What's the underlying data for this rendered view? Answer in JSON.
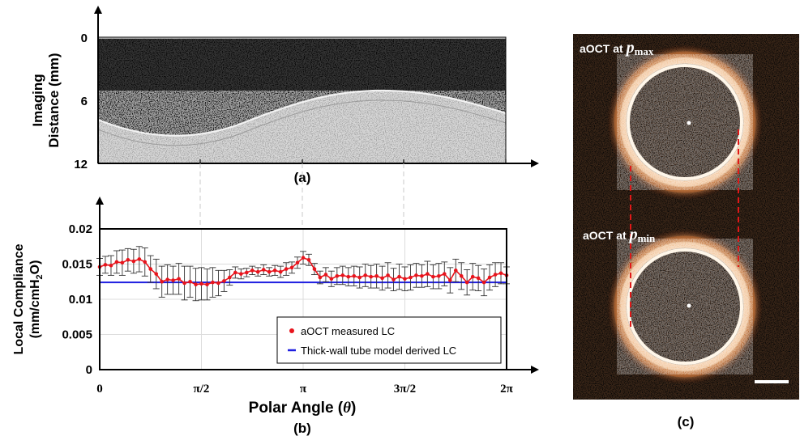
{
  "panel_a": {
    "caption": "(a)",
    "ylabel_line1": "Imaging",
    "ylabel_line2": "Distance (mm)",
    "yticks": [
      "0",
      "6",
      "12"
    ]
  },
  "panel_b": {
    "caption": "(b)",
    "ylabel_line1": "Local Compliance",
    "ylabel_line2_pre": "(mm/cmH",
    "ylabel_line2_sub": "2",
    "ylabel_line2_post": "O)",
    "xlabel_pre": "Polar Angle (",
    "xlabel_theta": "θ",
    "xlabel_post": ")",
    "legend": {
      "measured": "aOCT measured LC",
      "model": "Thick-wall tube model derived LC"
    }
  },
  "panel_c": {
    "caption": "(c)",
    "label_top_pre": "aOCT at ",
    "label_top_p": "p",
    "label_top_sub": "max",
    "label_bottom_pre": "aOCT at ",
    "label_bottom_p": "p",
    "label_bottom_sub": "min"
  },
  "colors": {
    "measured": "#e8141c",
    "model": "#1f1fe0",
    "oct_background": "#050505",
    "ring": "#f0d0a8"
  },
  "chart_data": {
    "type": "line",
    "xlabel": "Polar Angle (θ)",
    "ylabel": "Local Compliance (mm/cmH2O)",
    "xlim": [
      0,
      6.2832
    ],
    "ylim": [
      0,
      0.02
    ],
    "xticks": [
      {
        "value": 0,
        "label": "0"
      },
      {
        "value": 1.5708,
        "label": "π/2"
      },
      {
        "value": 3.1416,
        "label": "π"
      },
      {
        "value": 4.7124,
        "label": "3π/2"
      },
      {
        "value": 6.2832,
        "label": "2π"
      }
    ],
    "yticks": [
      {
        "value": 0,
        "label": "0"
      },
      {
        "value": 0.005,
        "label": "0.005"
      },
      {
        "value": 0.01,
        "label": "0.01"
      },
      {
        "value": 0.015,
        "label": "0.015"
      },
      {
        "value": 0.02,
        "label": "0.02"
      }
    ],
    "grid": true,
    "legend_position": "bottom-right",
    "series": [
      {
        "name": "aOCT measured LC",
        "x": [
          0.0,
          0.087,
          0.175,
          0.262,
          0.349,
          0.436,
          0.524,
          0.611,
          0.698,
          0.785,
          0.873,
          0.96,
          1.047,
          1.134,
          1.222,
          1.309,
          1.396,
          1.484,
          1.571,
          1.658,
          1.745,
          1.833,
          1.92,
          2.007,
          2.094,
          2.182,
          2.269,
          2.356,
          2.443,
          2.531,
          2.618,
          2.705,
          2.793,
          2.88,
          2.967,
          3.054,
          3.142,
          3.229,
          3.316,
          3.403,
          3.491,
          3.578,
          3.665,
          3.752,
          3.84,
          3.927,
          4.014,
          4.102,
          4.189,
          4.276,
          4.363,
          4.451,
          4.538,
          4.625,
          4.712,
          4.8,
          4.887,
          4.974,
          5.061,
          5.149,
          5.236,
          5.323,
          5.411,
          5.498,
          5.585,
          5.672,
          5.76,
          5.847,
          5.934,
          6.021,
          6.109,
          6.196,
          6.283
        ],
        "values": [
          0.0146,
          0.0149,
          0.0148,
          0.0153,
          0.0152,
          0.0156,
          0.0154,
          0.0157,
          0.0153,
          0.0143,
          0.0136,
          0.0125,
          0.0128,
          0.0127,
          0.0129,
          0.0123,
          0.0125,
          0.0121,
          0.0122,
          0.0121,
          0.0124,
          0.0123,
          0.0126,
          0.0131,
          0.0138,
          0.0136,
          0.0138,
          0.0141,
          0.0139,
          0.0142,
          0.0139,
          0.0141,
          0.0139,
          0.0143,
          0.0145,
          0.0152,
          0.0159,
          0.0156,
          0.0143,
          0.0131,
          0.0135,
          0.0129,
          0.0133,
          0.0134,
          0.0132,
          0.0133,
          0.0131,
          0.0134,
          0.0132,
          0.0133,
          0.013,
          0.0134,
          0.0128,
          0.0132,
          0.0129,
          0.0131,
          0.0134,
          0.0133,
          0.0136,
          0.0132,
          0.0133,
          0.0136,
          0.0127,
          0.0141,
          0.0133,
          0.0124,
          0.0132,
          0.013,
          0.0124,
          0.0131,
          0.0135,
          0.0137,
          0.0134
        ],
        "errors": [
          0.0012,
          0.0012,
          0.0014,
          0.0016,
          0.0018,
          0.0016,
          0.0017,
          0.0018,
          0.002,
          0.0019,
          0.0021,
          0.0022,
          0.0021,
          0.002,
          0.0022,
          0.0024,
          0.0022,
          0.0023,
          0.0023,
          0.0022,
          0.0021,
          0.0018,
          0.0015,
          0.0011,
          0.0008,
          0.0007,
          0.0006,
          0.0006,
          0.0006,
          0.0007,
          0.0006,
          0.0007,
          0.0008,
          0.0009,
          0.0008,
          0.0008,
          0.0009,
          0.0008,
          0.0008,
          0.0009,
          0.001,
          0.0011,
          0.0012,
          0.0013,
          0.0013,
          0.0014,
          0.0015,
          0.0016,
          0.0016,
          0.0017,
          0.0017,
          0.0018,
          0.0016,
          0.0018,
          0.0017,
          0.0018,
          0.0017,
          0.0016,
          0.0018,
          0.0017,
          0.0018,
          0.0017,
          0.0018,
          0.0016,
          0.0019,
          0.0018,
          0.0019,
          0.0018,
          0.0019,
          0.0018,
          0.0017,
          0.0015,
          0.0012
        ]
      },
      {
        "name": "Thick-wall tube model derived LC",
        "x": [
          0,
          6.2832
        ],
        "values": [
          0.0124,
          0.0124
        ]
      }
    ]
  }
}
